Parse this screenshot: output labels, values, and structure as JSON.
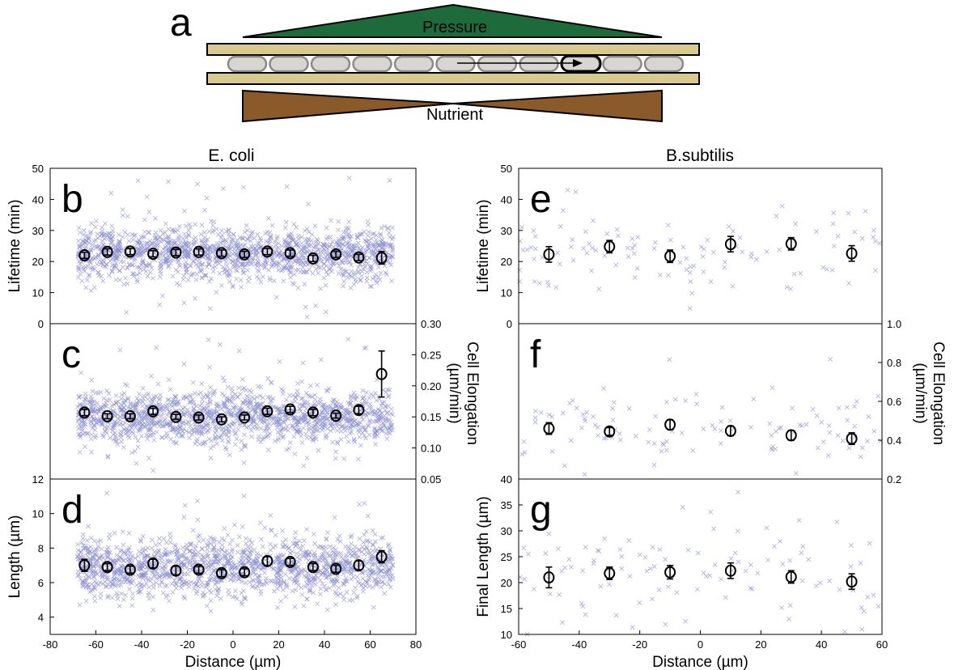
{
  "schematic": {
    "panel_label": "a",
    "pressure_label": "Pressure",
    "nutrient_label": "Nutrient",
    "colors": {
      "pressure": "#1d6b3a",
      "nutrient": "#8b5a2b",
      "wall": "#d8c98f",
      "cell": "#d9d6d2"
    }
  },
  "columns": {
    "left": "E. coli",
    "right": "B.subtilis"
  },
  "colors": {
    "scatter": "#8d90cf",
    "mean": "#000000"
  },
  "chart_data": [
    {
      "id": "b",
      "type": "scatter",
      "panel_label": "b",
      "species": "E. coli",
      "ylabel": "Lifetime (min)",
      "ylabel_side": "left",
      "xlim": [
        -80,
        80
      ],
      "ylim": [
        0,
        50
      ],
      "yticks": [
        0,
        10,
        20,
        30,
        40,
        50
      ],
      "scatter": {
        "n": 1500,
        "x_range": [
          -68,
          70
        ],
        "y_center": 22.5,
        "y_spread": 4.2,
        "outliers_y": [
          2,
          48
        ]
      },
      "means": {
        "x": [
          -65,
          -55,
          -45,
          -35,
          -25,
          -15,
          -5,
          5,
          15,
          25,
          35,
          45,
          55,
          65
        ],
        "y": [
          22,
          23.1,
          23.2,
          22.5,
          22.9,
          23.1,
          22.7,
          22.3,
          23.2,
          22.7,
          21,
          22.3,
          21.3,
          21.2
        ],
        "err": [
          1,
          1,
          1,
          1,
          1,
          1,
          1,
          1,
          1,
          1,
          1,
          1,
          1,
          2
        ]
      }
    },
    {
      "id": "c",
      "type": "scatter",
      "panel_label": "c",
      "species": "E. coli",
      "ylabel": "Cell Elongation (µm/min)",
      "ylabel_side": "right",
      "xlim": [
        -80,
        80
      ],
      "ylim": [
        0.05,
        0.3
      ],
      "yticks": [
        0.05,
        0.1,
        0.15,
        0.2,
        0.25,
        0.3
      ],
      "ytick_labels": [
        "0.05",
        "0.10",
        "0.15",
        "0.20",
        "0.25",
        "0.30"
      ],
      "scatter": {
        "n": 1500,
        "x_range": [
          -68,
          70
        ],
        "y_center": 0.15,
        "y_spread": 0.022,
        "outliers_y": [
          0.06,
          0.28
        ]
      },
      "means": {
        "x": [
          -65,
          -55,
          -45,
          -35,
          -25,
          -15,
          -5,
          5,
          15,
          25,
          35,
          45,
          55,
          65
        ],
        "y": [
          0.157,
          0.151,
          0.151,
          0.159,
          0.15,
          0.149,
          0.146,
          0.149,
          0.159,
          0.162,
          0.157,
          0.152,
          0.161,
          0.219
        ],
        "err": [
          0.005,
          0.004,
          0.004,
          0.005,
          0.004,
          0.004,
          0.004,
          0.004,
          0.005,
          0.005,
          0.005,
          0.004,
          0.006,
          0.037
        ]
      }
    },
    {
      "id": "d",
      "type": "scatter",
      "panel_label": "d",
      "species": "E. coli",
      "ylabel": "Length (µm)",
      "ylabel_side": "left",
      "xlabel": "Distance (µm)",
      "xlim": [
        -80,
        80
      ],
      "ylim": [
        3,
        12
      ],
      "yticks": [
        4,
        6,
        8,
        10,
        12
      ],
      "xticks": [
        -80,
        -60,
        -40,
        -20,
        0,
        20,
        40,
        60,
        80
      ],
      "scatter": {
        "n": 1500,
        "x_range": [
          -68,
          70
        ],
        "y_center": 6.9,
        "y_spread": 0.85,
        "outliers_y": [
          4.3,
          11.2
        ]
      },
      "means": {
        "x": [
          -65,
          -55,
          -45,
          -35,
          -25,
          -15,
          -5,
          5,
          15,
          25,
          35,
          45,
          55,
          65
        ],
        "y": [
          7,
          6.9,
          6.75,
          7.1,
          6.7,
          6.75,
          6.55,
          6.6,
          7.25,
          7.2,
          6.9,
          6.8,
          7,
          7.5
        ],
        "err": [
          0.35,
          0.2,
          0.2,
          0.25,
          0.25,
          0.2,
          0.2,
          0.2,
          0.25,
          0.2,
          0.2,
          0.2,
          0.25,
          0.35
        ]
      }
    },
    {
      "id": "e",
      "type": "scatter",
      "panel_label": "e",
      "species": "B.subtilis",
      "ylabel": "Lifetime (min)",
      "ylabel_side": "left",
      "xlim": [
        -60,
        60
      ],
      "ylim": [
        0,
        50
      ],
      "yticks": [
        0,
        10,
        20,
        30,
        40,
        50
      ],
      "scatter": {
        "n": 110,
        "x_range": [
          -60,
          60
        ],
        "y_center": 24,
        "y_spread": 8,
        "outliers_y": [
          8,
          47
        ]
      },
      "means": {
        "x": [
          -50,
          -30,
          -10,
          10,
          30,
          50
        ],
        "y": [
          22.3,
          24.8,
          21.7,
          25.6,
          25.7,
          22.6
        ],
        "err": [
          2.5,
          2,
          2,
          2.5,
          2,
          2.5
        ]
      }
    },
    {
      "id": "f",
      "type": "scatter",
      "panel_label": "f",
      "species": "B.subtilis",
      "ylabel": "Cell Elongation (µm/min)",
      "ylabel_side": "right",
      "xlim": [
        -60,
        60
      ],
      "ylim": [
        0.2,
        1.0
      ],
      "yticks": [
        0.2,
        0.4,
        0.6,
        0.8,
        1.0
      ],
      "ytick_labels": [
        "0.2",
        "0.4",
        "0.6",
        "0.8",
        "1.0"
      ],
      "scatter": {
        "n": 110,
        "x_range": [
          -60,
          60
        ],
        "y_center": 0.45,
        "y_spread": 0.09,
        "outliers_y": [
          0.27,
          0.83
        ]
      },
      "means": {
        "x": [
          -50,
          -30,
          -10,
          10,
          30,
          50
        ],
        "y": [
          0.46,
          0.445,
          0.48,
          0.448,
          0.425,
          0.408
        ],
        "err": [
          0.03,
          0.02,
          0.025,
          0.025,
          0.025,
          0.03
        ]
      }
    },
    {
      "id": "g",
      "type": "scatter",
      "panel_label": "g",
      "species": "B.subtilis",
      "ylabel": "Final Length (µm)",
      "ylabel_side": "left",
      "xlabel": "Distance (µm)",
      "xlim": [
        -60,
        60
      ],
      "ylim": [
        10,
        40
      ],
      "yticks": [
        10,
        15,
        20,
        25,
        30,
        35,
        40
      ],
      "xticks": [
        -60,
        -40,
        -20,
        0,
        20,
        40,
        60
      ],
      "scatter": {
        "n": 110,
        "x_range": [
          -60,
          60
        ],
        "y_center": 22,
        "y_spread": 5.5,
        "outliers_y": [
          13,
          36
        ]
      },
      "means": {
        "x": [
          -50,
          -30,
          -10,
          10,
          30,
          50
        ],
        "y": [
          21,
          21.8,
          22,
          22.3,
          21.1,
          20.2
        ],
        "err": [
          2,
          1.2,
          1.3,
          1.5,
          1.2,
          1.5
        ]
      }
    }
  ]
}
